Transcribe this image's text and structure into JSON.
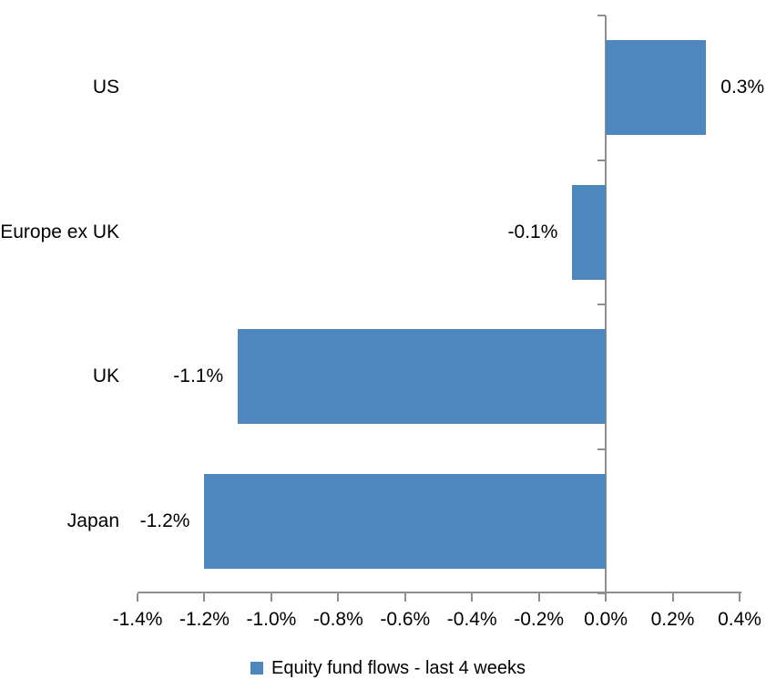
{
  "chart_data": {
    "type": "bar",
    "orientation": "horizontal",
    "title": "",
    "categories": [
      "US",
      "Europe ex UK",
      "UK",
      "Japan"
    ],
    "series": [
      {
        "name": "Equity fund flows - last 4 weeks",
        "values": [
          0.3,
          -0.1,
          -1.1,
          -1.2
        ],
        "value_labels": [
          "0.3%",
          "-0.1%",
          "-1.1%",
          "-1.2%"
        ],
        "color": "#4E87BD"
      }
    ],
    "xlabel": "",
    "ylabel": "",
    "xlim": [
      -1.4,
      0.4
    ],
    "x_ticks": [
      -1.4,
      -1.2,
      -1.0,
      -0.8,
      -0.6,
      -0.4,
      -0.2,
      0.0,
      0.2,
      0.4
    ],
    "x_tick_labels": [
      "-1.4%",
      "-1.2%",
      "-1.0%",
      "-0.8%",
      "-0.6%",
      "-0.4%",
      "-0.2%",
      "0.0%",
      "0.2%",
      "0.4%"
    ],
    "grid": false,
    "legend_position": "bottom",
    "axis_color": "#8E8E8E",
    "text_color": "#000000",
    "background_color": "#FFFFFF"
  },
  "legend": {
    "label": "Equity fund flows - last 4 weeks",
    "marker_color": "#4E87BD"
  }
}
